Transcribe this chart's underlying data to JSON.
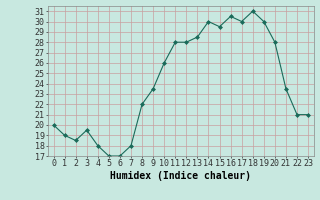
{
  "x": [
    0,
    1,
    2,
    3,
    4,
    5,
    6,
    7,
    8,
    9,
    10,
    11,
    12,
    13,
    14,
    15,
    16,
    17,
    18,
    19,
    20,
    21,
    22,
    23
  ],
  "y": [
    20,
    19,
    18.5,
    19.5,
    18,
    17,
    17,
    18,
    22,
    23.5,
    26,
    28,
    28,
    28.5,
    30,
    29.5,
    30.5,
    30,
    31,
    30,
    28,
    23.5,
    21,
    21
  ],
  "line_color": "#1a6b5a",
  "marker_color": "#1a6b5a",
  "bg_color": "#c8e8e0",
  "grid_color": "#b8d8d0",
  "xlabel": "Humidex (Indice chaleur)",
  "xlim": [
    -0.5,
    23.5
  ],
  "ylim": [
    17,
    31.5
  ],
  "yticks": [
    17,
    18,
    19,
    20,
    21,
    22,
    23,
    24,
    25,
    26,
    27,
    28,
    29,
    30,
    31
  ],
  "xticks": [
    0,
    1,
    2,
    3,
    4,
    5,
    6,
    7,
    8,
    9,
    10,
    11,
    12,
    13,
    14,
    15,
    16,
    17,
    18,
    19,
    20,
    21,
    22,
    23
  ],
  "label_fontsize": 7,
  "tick_fontsize": 6
}
